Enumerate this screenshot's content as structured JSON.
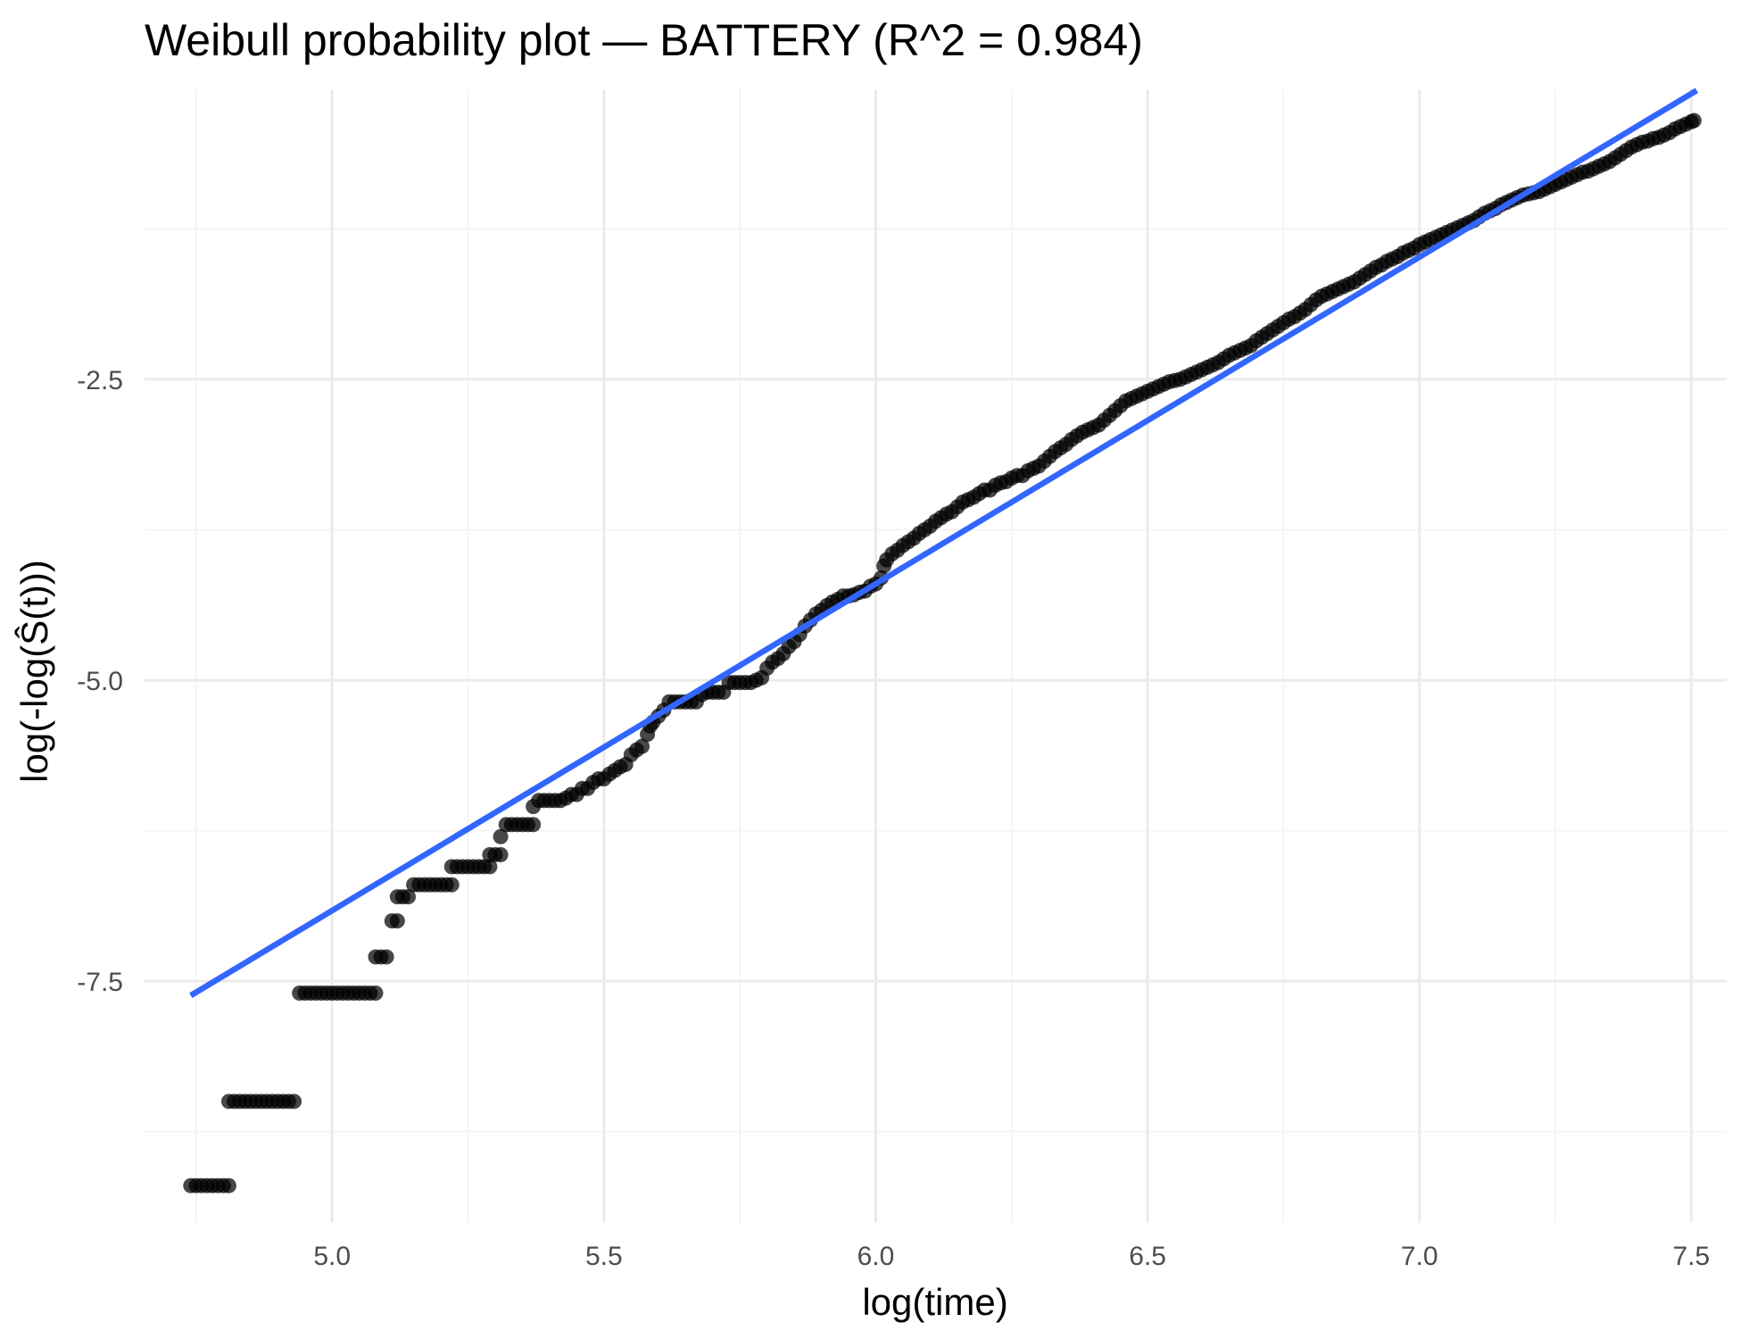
{
  "chart_data": {
    "type": "scatter",
    "title": "Weibull probability plot — BATTERY  (R^2 = 0.984)",
    "xlabel": "log(time)",
    "ylabel": "log(-log(Ŝ(t)))",
    "xlim": [
      4.655,
      7.565
    ],
    "ylim": [
      -9.51,
      -0.09
    ],
    "x_ticks": [
      5.0,
      5.5,
      6.0,
      6.5,
      7.0,
      7.5
    ],
    "x_tick_labels": [
      "5.0",
      "5.5",
      "6.0",
      "6.5",
      "7.0",
      "7.5"
    ],
    "y_ticks": [
      -2.5,
      -5.0,
      -7.5
    ],
    "y_tick_labels": [
      "-2.5",
      "-5.0",
      "-7.5"
    ],
    "grid": true,
    "legend": "none",
    "series": [
      {
        "kind": "points",
        "color": "#000000",
        "points": [
          [
            4.74,
            -9.2
          ],
          [
            4.75,
            -9.2
          ],
          [
            4.76,
            -9.2
          ],
          [
            4.77,
            -9.2
          ],
          [
            4.78,
            -9.2
          ],
          [
            4.79,
            -9.2
          ],
          [
            4.8,
            -9.2
          ],
          [
            4.81,
            -9.2
          ],
          [
            4.81,
            -8.5
          ],
          [
            4.82,
            -8.5
          ],
          [
            4.83,
            -8.5
          ],
          [
            4.84,
            -8.5
          ],
          [
            4.85,
            -8.5
          ],
          [
            4.86,
            -8.5
          ],
          [
            4.87,
            -8.5
          ],
          [
            4.88,
            -8.5
          ],
          [
            4.89,
            -8.5
          ],
          [
            4.9,
            -8.5
          ],
          [
            4.91,
            -8.5
          ],
          [
            4.92,
            -8.5
          ],
          [
            4.93,
            -8.5
          ],
          [
            4.94,
            -7.6
          ],
          [
            4.95,
            -7.6
          ],
          [
            4.96,
            -7.6
          ],
          [
            4.97,
            -7.6
          ],
          [
            4.98,
            -7.6
          ],
          [
            4.99,
            -7.6
          ],
          [
            5.0,
            -7.6
          ],
          [
            5.01,
            -7.6
          ],
          [
            5.02,
            -7.6
          ],
          [
            5.03,
            -7.6
          ],
          [
            5.04,
            -7.6
          ],
          [
            5.05,
            -7.6
          ],
          [
            5.06,
            -7.6
          ],
          [
            5.07,
            -7.6
          ],
          [
            5.08,
            -7.6
          ],
          [
            5.08,
            -7.3
          ],
          [
            5.09,
            -7.3
          ],
          [
            5.1,
            -7.3
          ],
          [
            5.11,
            -7.0
          ],
          [
            5.12,
            -7.0
          ],
          [
            5.12,
            -6.8
          ],
          [
            5.13,
            -6.8
          ],
          [
            5.14,
            -6.8
          ],
          [
            5.15,
            -6.7
          ],
          [
            5.16,
            -6.7
          ],
          [
            5.17,
            -6.7
          ],
          [
            5.18,
            -6.7
          ],
          [
            5.19,
            -6.7
          ],
          [
            5.2,
            -6.7
          ],
          [
            5.21,
            -6.7
          ],
          [
            5.22,
            -6.7
          ],
          [
            5.22,
            -6.55
          ],
          [
            5.23,
            -6.55
          ],
          [
            5.24,
            -6.55
          ],
          [
            5.25,
            -6.55
          ],
          [
            5.26,
            -6.55
          ],
          [
            5.27,
            -6.55
          ],
          [
            5.28,
            -6.55
          ],
          [
            5.29,
            -6.55
          ],
          [
            5.29,
            -6.45
          ],
          [
            5.3,
            -6.45
          ],
          [
            5.31,
            -6.45
          ],
          [
            5.31,
            -6.3
          ],
          [
            5.32,
            -6.2
          ],
          [
            5.33,
            -6.2
          ],
          [
            5.34,
            -6.2
          ],
          [
            5.35,
            -6.2
          ],
          [
            5.36,
            -6.2
          ],
          [
            5.37,
            -6.2
          ],
          [
            5.37,
            -6.05
          ],
          [
            5.38,
            -6.0
          ],
          [
            5.39,
            -6.0
          ],
          [
            5.4,
            -6.0
          ],
          [
            5.41,
            -6.0
          ],
          [
            5.42,
            -6.0
          ],
          [
            5.43,
            -5.98
          ],
          [
            5.44,
            -5.95
          ],
          [
            5.45,
            -5.95
          ],
          [
            5.46,
            -5.9
          ],
          [
            5.47,
            -5.9
          ],
          [
            5.48,
            -5.85
          ],
          [
            5.49,
            -5.82
          ],
          [
            5.5,
            -5.82
          ],
          [
            5.51,
            -5.78
          ],
          [
            5.52,
            -5.75
          ],
          [
            5.53,
            -5.72
          ],
          [
            5.54,
            -5.7
          ],
          [
            5.55,
            -5.62
          ],
          [
            5.56,
            -5.58
          ],
          [
            5.57,
            -5.55
          ],
          [
            5.58,
            -5.45
          ],
          [
            5.585,
            -5.38
          ],
          [
            5.59,
            -5.35
          ],
          [
            5.6,
            -5.3
          ],
          [
            5.61,
            -5.25
          ],
          [
            5.62,
            -5.18
          ],
          [
            5.63,
            -5.18
          ],
          [
            5.64,
            -5.18
          ],
          [
            5.65,
            -5.18
          ],
          [
            5.66,
            -5.18
          ],
          [
            5.67,
            -5.18
          ],
          [
            5.68,
            -5.12
          ],
          [
            5.69,
            -5.1
          ],
          [
            5.7,
            -5.1
          ],
          [
            5.71,
            -5.1
          ],
          [
            5.72,
            -5.1
          ],
          [
            5.73,
            -5.02
          ],
          [
            5.74,
            -5.02
          ],
          [
            5.75,
            -5.02
          ],
          [
            5.76,
            -5.02
          ],
          [
            5.77,
            -5.02
          ],
          [
            5.78,
            -5.0
          ],
          [
            5.79,
            -4.98
          ],
          [
            5.8,
            -4.9
          ],
          [
            5.81,
            -4.85
          ],
          [
            5.82,
            -4.82
          ],
          [
            5.83,
            -4.78
          ],
          [
            5.84,
            -4.72
          ],
          [
            5.85,
            -4.68
          ],
          [
            5.86,
            -4.62
          ],
          [
            5.87,
            -4.55
          ],
          [
            5.88,
            -4.5
          ],
          [
            5.89,
            -4.45
          ],
          [
            5.9,
            -4.42
          ],
          [
            5.91,
            -4.38
          ],
          [
            5.92,
            -4.35
          ],
          [
            5.93,
            -4.33
          ],
          [
            5.94,
            -4.3
          ],
          [
            5.95,
            -4.3
          ],
          [
            5.96,
            -4.29
          ],
          [
            5.97,
            -4.27
          ],
          [
            5.98,
            -4.26
          ],
          [
            5.99,
            -4.22
          ],
          [
            6.0,
            -4.2
          ],
          [
            6.01,
            -4.15
          ],
          [
            6.015,
            -4.05
          ],
          [
            6.02,
            -4.0
          ],
          [
            6.03,
            -3.95
          ],
          [
            6.04,
            -3.92
          ],
          [
            6.05,
            -3.88
          ],
          [
            6.06,
            -3.85
          ],
          [
            6.07,
            -3.82
          ],
          [
            6.08,
            -3.78
          ],
          [
            6.09,
            -3.75
          ],
          [
            6.1,
            -3.72
          ],
          [
            6.11,
            -3.68
          ],
          [
            6.12,
            -3.65
          ],
          [
            6.13,
            -3.62
          ],
          [
            6.14,
            -3.6
          ],
          [
            6.15,
            -3.56
          ],
          [
            6.16,
            -3.52
          ],
          [
            6.17,
            -3.5
          ],
          [
            6.18,
            -3.48
          ],
          [
            6.19,
            -3.45
          ],
          [
            6.2,
            -3.42
          ],
          [
            6.21,
            -3.42
          ],
          [
            6.22,
            -3.38
          ],
          [
            6.23,
            -3.36
          ],
          [
            6.24,
            -3.35
          ],
          [
            6.25,
            -3.32
          ],
          [
            6.26,
            -3.3
          ],
          [
            6.27,
            -3.3
          ],
          [
            6.28,
            -3.26
          ],
          [
            6.29,
            -3.24
          ],
          [
            6.3,
            -3.22
          ],
          [
            6.31,
            -3.18
          ],
          [
            6.32,
            -3.14
          ],
          [
            6.33,
            -3.1
          ],
          [
            6.34,
            -3.07
          ],
          [
            6.35,
            -3.04
          ],
          [
            6.36,
            -3.0
          ],
          [
            6.37,
            -2.97
          ],
          [
            6.38,
            -2.94
          ],
          [
            6.39,
            -2.92
          ],
          [
            6.4,
            -2.9
          ],
          [
            6.41,
            -2.88
          ],
          [
            6.42,
            -2.84
          ],
          [
            6.43,
            -2.8
          ],
          [
            6.44,
            -2.76
          ],
          [
            6.45,
            -2.72
          ],
          [
            6.46,
            -2.68
          ],
          [
            6.47,
            -2.66
          ],
          [
            6.48,
            -2.64
          ],
          [
            6.49,
            -2.62
          ],
          [
            6.5,
            -2.6
          ],
          [
            6.51,
            -2.58
          ],
          [
            6.52,
            -2.56
          ],
          [
            6.53,
            -2.54
          ],
          [
            6.54,
            -2.52
          ],
          [
            6.55,
            -2.51
          ],
          [
            6.56,
            -2.5
          ],
          [
            6.57,
            -2.48
          ],
          [
            6.58,
            -2.46
          ],
          [
            6.59,
            -2.44
          ],
          [
            6.6,
            -2.42
          ],
          [
            6.61,
            -2.4
          ],
          [
            6.62,
            -2.38
          ],
          [
            6.63,
            -2.36
          ],
          [
            6.64,
            -2.33
          ],
          [
            6.65,
            -2.3
          ],
          [
            6.66,
            -2.28
          ],
          [
            6.67,
            -2.26
          ],
          [
            6.68,
            -2.24
          ],
          [
            6.69,
            -2.22
          ],
          [
            6.7,
            -2.18
          ],
          [
            6.71,
            -2.15
          ],
          [
            6.72,
            -2.12
          ],
          [
            6.73,
            -2.09
          ],
          [
            6.74,
            -2.06
          ],
          [
            6.75,
            -2.03
          ],
          [
            6.76,
            -2.0
          ],
          [
            6.77,
            -1.98
          ],
          [
            6.78,
            -1.95
          ],
          [
            6.79,
            -1.92
          ],
          [
            6.8,
            -1.88
          ],
          [
            6.81,
            -1.84
          ],
          [
            6.82,
            -1.81
          ],
          [
            6.83,
            -1.79
          ],
          [
            6.84,
            -1.77
          ],
          [
            6.85,
            -1.75
          ],
          [
            6.86,
            -1.73
          ],
          [
            6.87,
            -1.71
          ],
          [
            6.88,
            -1.69
          ],
          [
            6.89,
            -1.66
          ],
          [
            6.9,
            -1.63
          ],
          [
            6.91,
            -1.6
          ],
          [
            6.92,
            -1.57
          ],
          [
            6.93,
            -1.55
          ],
          [
            6.94,
            -1.52
          ],
          [
            6.95,
            -1.5
          ],
          [
            6.96,
            -1.48
          ],
          [
            6.97,
            -1.45
          ],
          [
            6.98,
            -1.43
          ],
          [
            6.99,
            -1.41
          ],
          [
            7.0,
            -1.38
          ],
          [
            7.01,
            -1.36
          ],
          [
            7.02,
            -1.34
          ],
          [
            7.03,
            -1.32
          ],
          [
            7.04,
            -1.3
          ],
          [
            7.05,
            -1.28
          ],
          [
            7.06,
            -1.26
          ],
          [
            7.07,
            -1.24
          ],
          [
            7.08,
            -1.22
          ],
          [
            7.09,
            -1.2
          ],
          [
            7.1,
            -1.18
          ],
          [
            7.11,
            -1.15
          ],
          [
            7.12,
            -1.12
          ],
          [
            7.13,
            -1.1
          ],
          [
            7.14,
            -1.08
          ],
          [
            7.15,
            -1.05
          ],
          [
            7.16,
            -1.03
          ],
          [
            7.17,
            -1.01
          ],
          [
            7.18,
            -0.99
          ],
          [
            7.19,
            -0.97
          ],
          [
            7.2,
            -0.96
          ],
          [
            7.21,
            -0.95
          ],
          [
            7.22,
            -0.94
          ],
          [
            7.23,
            -0.92
          ],
          [
            7.24,
            -0.9
          ],
          [
            7.25,
            -0.88
          ],
          [
            7.26,
            -0.86
          ],
          [
            7.27,
            -0.84
          ],
          [
            7.28,
            -0.82
          ],
          [
            7.29,
            -0.8
          ],
          [
            7.3,
            -0.78
          ],
          [
            7.31,
            -0.77
          ],
          [
            7.32,
            -0.75
          ],
          [
            7.33,
            -0.73
          ],
          [
            7.34,
            -0.71
          ],
          [
            7.35,
            -0.69
          ],
          [
            7.36,
            -0.66
          ],
          [
            7.37,
            -0.63
          ],
          [
            7.38,
            -0.6
          ],
          [
            7.39,
            -0.57
          ],
          [
            7.4,
            -0.55
          ],
          [
            7.41,
            -0.53
          ],
          [
            7.42,
            -0.52
          ],
          [
            7.43,
            -0.5
          ],
          [
            7.44,
            -0.49
          ],
          [
            7.45,
            -0.47
          ],
          [
            7.46,
            -0.45
          ],
          [
            7.47,
            -0.42
          ],
          [
            7.48,
            -0.4
          ],
          [
            7.49,
            -0.38
          ],
          [
            7.5,
            -0.36
          ],
          [
            7.505,
            -0.35
          ]
        ]
      },
      {
        "kind": "line",
        "color": "#3366ff",
        "x": [
          4.74,
          7.51
        ],
        "y": [
          -7.62,
          -0.1
        ]
      }
    ]
  }
}
